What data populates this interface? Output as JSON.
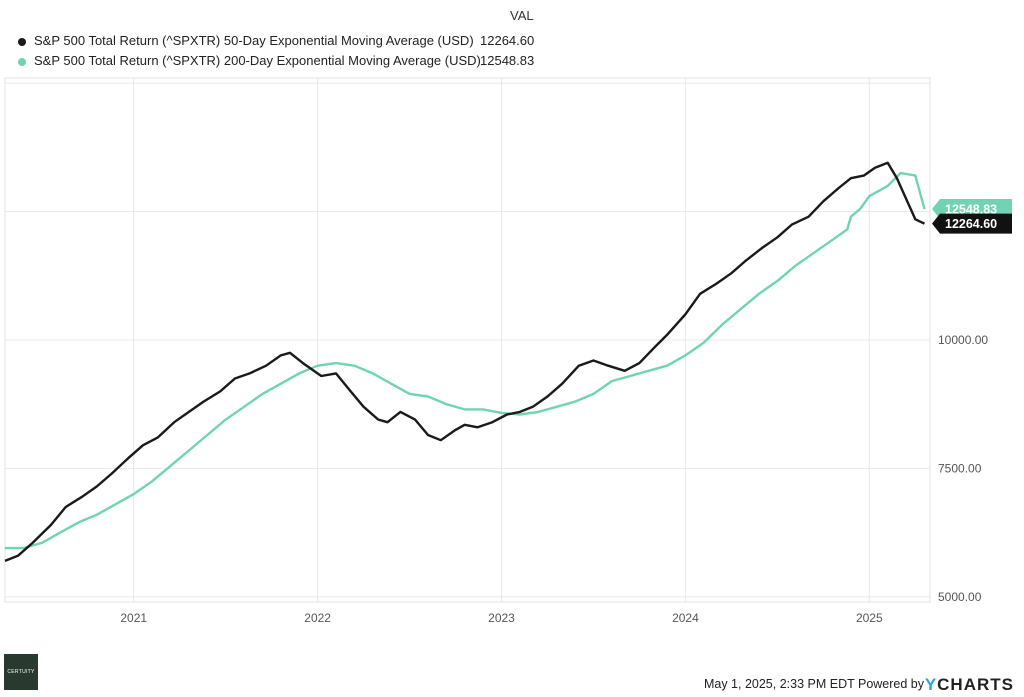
{
  "legend": {
    "header": "VAL",
    "series": [
      {
        "name": "S&P 500 Total Return (^SPXTR) 50-Day Exponential Moving Average (USD)",
        "value": "12264.60",
        "color": "#1a1a1a"
      },
      {
        "name": "S&P 500 Total Return (^SPXTR) 200-Day Exponential Moving Average (USD)",
        "value": "12548.83",
        "color": "#6fd3b4"
      }
    ]
  },
  "footer": {
    "timestamp": "May 1, 2025, 2:33 PM EDT Powered by",
    "brand_prefix": "Y",
    "brand_rest": "CHARTS"
  },
  "logo_text": "CERTUITY",
  "chart_data": {
    "type": "line",
    "x_tick_labels": [
      "2021",
      "2022",
      "2023",
      "2024",
      "2025"
    ],
    "y_tick_labels": [
      "5000.00",
      "7500.00",
      "10000.00"
    ],
    "y_ticks": [
      5000,
      7500,
      10000
    ],
    "ylim": [
      4900,
      15100
    ],
    "xlim": [
      2020.3,
      2025.33
    ],
    "grid": true,
    "end_labels": [
      {
        "text": "12548.83",
        "value": 12548.83,
        "color": "#6fd3b4",
        "text_color": "#ffffff"
      },
      {
        "text": "12264.60",
        "value": 12264.6,
        "color": "#111111",
        "text_color": "#ffffff"
      }
    ],
    "series": [
      {
        "name": "S&P 500 Total Return (^SPXTR) 50-Day Exponential Moving Average (USD)",
        "color": "#1a1a1a",
        "x": [
          2020.3,
          2020.37,
          2020.45,
          2020.55,
          2020.63,
          2020.72,
          2020.8,
          2020.88,
          2020.97,
          2021.05,
          2021.13,
          2021.22,
          2021.3,
          2021.38,
          2021.47,
          2021.55,
          2021.63,
          2021.72,
          2021.8,
          2021.85,
          2021.92,
          2022.02,
          2022.1,
          2022.18,
          2022.25,
          2022.33,
          2022.38,
          2022.45,
          2022.53,
          2022.6,
          2022.67,
          2022.75,
          2022.8,
          2022.87,
          2022.95,
          2023.03,
          2023.1,
          2023.17,
          2023.25,
          2023.33,
          2023.42,
          2023.5,
          2023.58,
          2023.67,
          2023.75,
          2023.83,
          2023.9,
          2024.0,
          2024.08,
          2024.17,
          2024.25,
          2024.33,
          2024.42,
          2024.5,
          2024.58,
          2024.67,
          2024.75,
          2024.83,
          2024.9,
          2024.97,
          2025.03,
          2025.1,
          2025.15,
          2025.2,
          2025.25,
          2025.3
        ],
        "y": [
          5700,
          5800,
          6050,
          6400,
          6750,
          6950,
          7150,
          7400,
          7700,
          7950,
          8100,
          8400,
          8600,
          8800,
          9000,
          9250,
          9350,
          9500,
          9700,
          9750,
          9550,
          9300,
          9350,
          9000,
          8700,
          8450,
          8400,
          8600,
          8450,
          8150,
          8050,
          8250,
          8350,
          8300,
          8400,
          8550,
          8600,
          8700,
          8900,
          9150,
          9500,
          9600,
          9500,
          9400,
          9550,
          9850,
          10100,
          10500,
          10900,
          11100,
          11300,
          11550,
          11800,
          12000,
          12250,
          12400,
          12700,
          12950,
          13150,
          13200,
          13350,
          13450,
          13150,
          12750,
          12350,
          12264.6
        ]
      },
      {
        "name": "S&P 500 Total Return (^SPXTR) 200-Day Exponential Moving Average (USD)",
        "color": "#6fd3b4",
        "x": [
          2020.3,
          2020.4,
          2020.5,
          2020.6,
          2020.7,
          2020.8,
          2020.9,
          2021.0,
          2021.1,
          2021.2,
          2021.3,
          2021.4,
          2021.5,
          2021.6,
          2021.7,
          2021.8,
          2021.9,
          2022.0,
          2022.1,
          2022.2,
          2022.3,
          2022.4,
          2022.5,
          2022.6,
          2022.7,
          2022.8,
          2022.9,
          2023.0,
          2023.1,
          2023.2,
          2023.3,
          2023.4,
          2023.5,
          2023.6,
          2023.7,
          2023.8,
          2023.9,
          2024.0,
          2024.1,
          2024.2,
          2024.3,
          2024.4,
          2024.5,
          2024.6,
          2024.7,
          2024.8,
          2024.88,
          2024.9,
          2024.95,
          2025.0,
          2025.1,
          2025.17,
          2025.25,
          2025.3
        ],
        "y": [
          5950,
          5950,
          6050,
          6250,
          6450,
          6600,
          6800,
          7000,
          7250,
          7550,
          7850,
          8150,
          8450,
          8700,
          8950,
          9150,
          9350,
          9500,
          9550,
          9500,
          9350,
          9150,
          8950,
          8900,
          8750,
          8650,
          8650,
          8580,
          8550,
          8600,
          8700,
          8800,
          8950,
          9200,
          9300,
          9400,
          9500,
          9700,
          9950,
          10300,
          10600,
          10900,
          11150,
          11450,
          11700,
          11950,
          12150,
          12400,
          12550,
          12800,
          13000,
          13250,
          13200,
          12548.83
        ]
      }
    ]
  }
}
